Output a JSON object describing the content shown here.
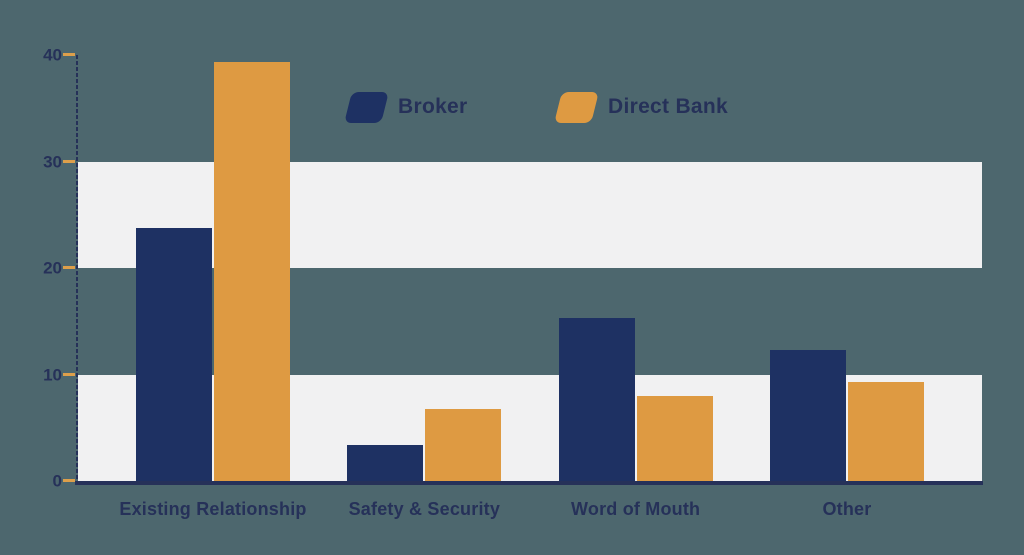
{
  "chart_data": {
    "type": "bar",
    "title": "",
    "categories": [
      "Existing Relationship",
      "Safety & Security",
      "Word of Mouth",
      "Other"
    ],
    "series": [
      {
        "name": "Broker",
        "color": "#1e3163",
        "values": [
          23.8,
          3.4,
          15.3,
          12.3
        ]
      },
      {
        "name": "Direct Bank",
        "color": "#de9a42",
        "values": [
          39.3,
          6.8,
          8.0,
          9.3
        ]
      }
    ],
    "xlabel": "",
    "ylabel": "",
    "ylim": [
      0,
      40
    ],
    "yticks": [
      40,
      30,
      20,
      10,
      0
    ],
    "grid": "horizontal-bands-at-0-10-and-20-30",
    "legend_position": "top-center"
  },
  "colors": {
    "background": "#4d676e",
    "band": "#f1f1f2",
    "axis_and_text": "#263159",
    "tick_dash": "#dd9f4b"
  }
}
